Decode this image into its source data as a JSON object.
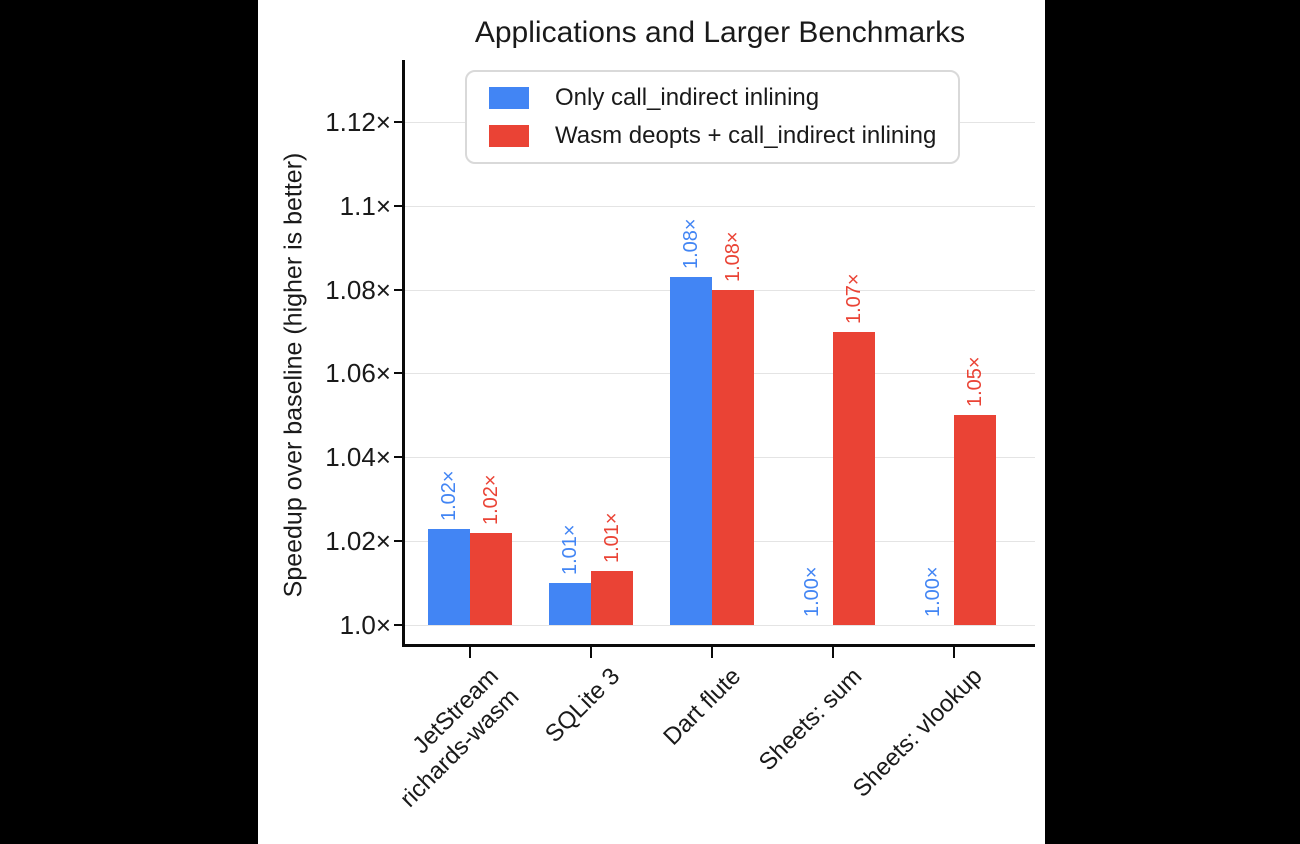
{
  "page": {
    "background_color": "#000000",
    "figure_background_color": "#ffffff",
    "grid_color": "#e4e4e4",
    "axis_color": "#0a0a0a",
    "text_color": "#1a1a1a"
  },
  "chart_data": {
    "type": "bar",
    "title": "Applications and Larger Benchmarks",
    "ylabel": "Speedup over baseline (higher is better)",
    "xlabel": "",
    "categories": [
      [
        "JetStream",
        "richards-wasm"
      ],
      [
        "SQLite 3"
      ],
      [
        "Dart flute"
      ],
      [
        "Sheets: sum"
      ],
      [
        "Sheets: vlookup"
      ]
    ],
    "series": [
      {
        "name": "Only call_indirect inlining",
        "color": "#4285F4",
        "values": [
          1.023,
          1.01,
          1.083,
          1.0,
          1.0
        ],
        "value_labels": [
          "1.02×",
          "1.01×",
          "1.08×",
          "1.00×",
          "1.00×"
        ]
      },
      {
        "name": "Wasm deopts + call_indirect inlining",
        "color": "#EA4335",
        "values": [
          1.022,
          1.013,
          1.08,
          1.07,
          1.05
        ],
        "value_labels": [
          "1.02×",
          "1.01×",
          "1.08×",
          "1.07×",
          "1.05×"
        ]
      }
    ],
    "yticks": [
      {
        "value": 1.0,
        "label": "1.0×"
      },
      {
        "value": 1.02,
        "label": "1.02×"
      },
      {
        "value": 1.04,
        "label": "1.04×"
      },
      {
        "value": 1.06,
        "label": "1.06×"
      },
      {
        "value": 1.08,
        "label": "1.08×"
      },
      {
        "value": 1.1,
        "label": "1.1×"
      },
      {
        "value": 1.12,
        "label": "1.12×"
      }
    ],
    "ylim": [
      1.0,
      1.135
    ],
    "grid": "horizontal",
    "legend_position": "inside-top",
    "value_label_rotation": 90,
    "xtick_label_rotation": 45
  }
}
